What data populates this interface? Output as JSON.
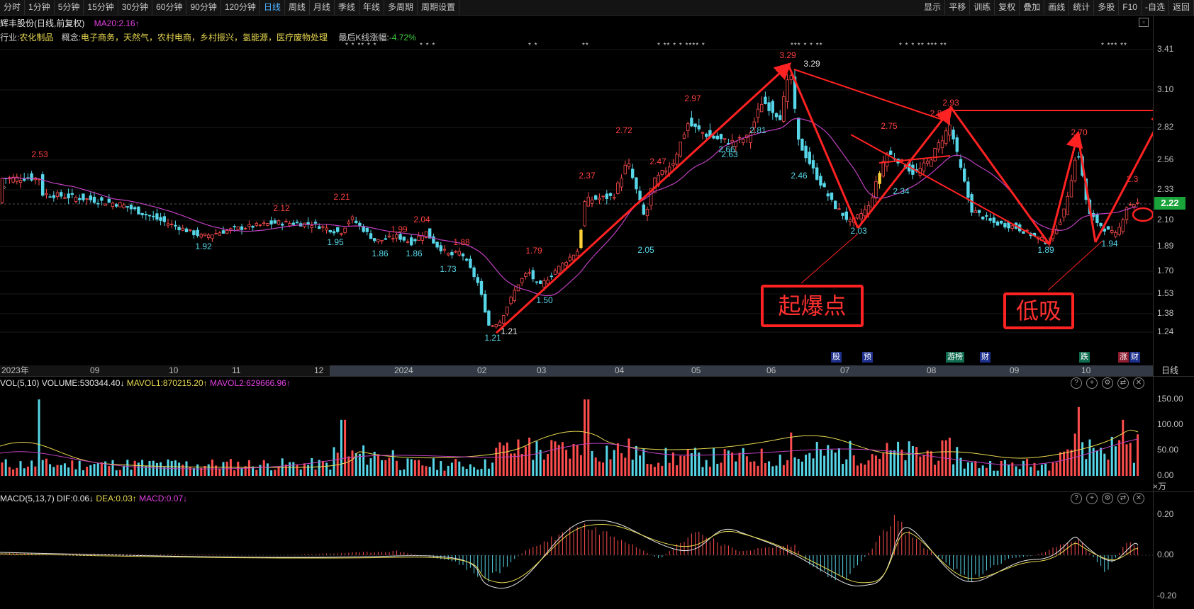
{
  "toolbar": {
    "left_tabs": [
      "分时",
      "1分钟",
      "5分钟",
      "15分钟",
      "30分钟",
      "60分钟",
      "90分钟",
      "120分钟",
      "日线",
      "周线",
      "月线",
      "季线",
      "年线",
      "多周期",
      "周期设置"
    ],
    "active_tab": "日线",
    "right_buttons": [
      "显示",
      "平移",
      "训练",
      "复权",
      "叠加",
      "画线",
      "统计",
      "多股",
      "F10",
      "-自选",
      "返回"
    ]
  },
  "header": {
    "stock_name": "辉丰股份(日线,前复权)",
    "ma20": "MA20:2.16↑",
    "industry_label": "行业:",
    "industry": "农化制品",
    "concept_label": "概念:",
    "concepts": "电子商务，天然气，农村电商，乡村振兴，氢能源，医疗废物处理",
    "last_change_label": "最后K线涨幅:",
    "last_change": "-4.72%"
  },
  "price_axis": {
    "ticks": [
      "3.41",
      "3.10",
      "2.82",
      "2.56",
      "2.33",
      "2.10",
      "1.89",
      "1.70",
      "1.53",
      "1.38",
      "1.24"
    ],
    "current_price": "2.22",
    "current_color": "#19a33a"
  },
  "time_axis": {
    "labels": [
      "2023年",
      "09",
      "10",
      "11",
      "12",
      "2024",
      "02",
      "03",
      "04",
      "05",
      "06",
      "07",
      "08",
      "09",
      "10"
    ],
    "period": "日线"
  },
  "event_tags": [
    {
      "text": "股",
      "color": "#1d2f8c"
    },
    {
      "text": "预",
      "color": "#1d2f8c"
    },
    {
      "text": "游榜",
      "color": "#0f6b4f"
    },
    {
      "text": "财",
      "color": "#1d2f8c"
    },
    {
      "text": "跌",
      "color": "#0f6b4f"
    },
    {
      "text": "涨",
      "color": "#8c1d2f"
    },
    {
      "text": "财",
      "color": "#1d2f8c"
    }
  ],
  "annotations": {
    "box1": "起爆点",
    "box2": "低吸"
  },
  "price_labels": [
    {
      "text": "2.53",
      "color": "#ff4040"
    },
    {
      "text": "1.92",
      "color": "#56d6e8"
    },
    {
      "text": "2.12",
      "color": "#ff4040"
    },
    {
      "text": "2.21",
      "color": "#ff4040"
    },
    {
      "text": "1.95",
      "color": "#56d6e8"
    },
    {
      "text": "1.86",
      "color": "#56d6e8"
    },
    {
      "text": "1.99",
      "color": "#ff4040"
    },
    {
      "text": "1.86",
      "color": "#56d6e8"
    },
    {
      "text": "2.04",
      "color": "#ff4040"
    },
    {
      "text": "1.88",
      "color": "#ff4040"
    },
    {
      "text": "1.73",
      "color": "#56d6e8"
    },
    {
      "text": "1.21",
      "color": "#56d6e8"
    },
    {
      "text": "1.21",
      "color": "#e6e6e6"
    },
    {
      "text": "1.79",
      "color": "#ff4040"
    },
    {
      "text": "1.50",
      "color": "#56d6e8"
    },
    {
      "text": "2.37",
      "color": "#ff4040"
    },
    {
      "text": "2.72",
      "color": "#ff4040"
    },
    {
      "text": "2.05",
      "color": "#56d6e8"
    },
    {
      "text": "2.47",
      "color": "#ff4040"
    },
    {
      "text": "2.97",
      "color": "#ff4040"
    },
    {
      "text": "2.66",
      "color": "#56d6e8"
    },
    {
      "text": "2.63",
      "color": "#56d6e8"
    },
    {
      "text": "2.81",
      "color": "#56d6e8"
    },
    {
      "text": "3.29",
      "color": "#ff4040"
    },
    {
      "text": "3.29",
      "color": "#e6e6e6"
    },
    {
      "text": "2.46",
      "color": "#56d6e8"
    },
    {
      "text": "2.03",
      "color": "#56d6e8"
    },
    {
      "text": "2.75",
      "color": "#ff4040"
    },
    {
      "text": "2.34",
      "color": "#56d6e8"
    },
    {
      "text": "2.8",
      "color": "#ff4040"
    },
    {
      "text": "2.93",
      "color": "#ff4040"
    },
    {
      "text": "1.89",
      "color": "#56d6e8"
    },
    {
      "text": "2.70",
      "color": "#ff4040"
    },
    {
      "text": "1.94",
      "color": "#56d6e8"
    },
    {
      "text": "2.3",
      "color": "#ff4040"
    }
  ],
  "volume_panel": {
    "title": "VOL(5,10)",
    "volume": "VOLUME:530344.40↓",
    "mavol1": "MAVOL1:870215.20↑",
    "mavol2": "MAVOL2:629666.96↑",
    "ticks": [
      "150.00",
      "100.00",
      "50.00",
      "0.00"
    ],
    "unit": "×万"
  },
  "macd_panel": {
    "title": "MACD(5,13,7)",
    "dif": "DIF:0.06↓",
    "dea": "DEA:0.03↑",
    "macd": "MACD:0.07↓",
    "ticks": [
      "0.20",
      "0.00",
      "-0.20"
    ]
  },
  "colors": {
    "up": "#ff4d4d",
    "down": "#56d6e8",
    "ma": "#c040c0",
    "annotation": "#ff2222"
  }
}
